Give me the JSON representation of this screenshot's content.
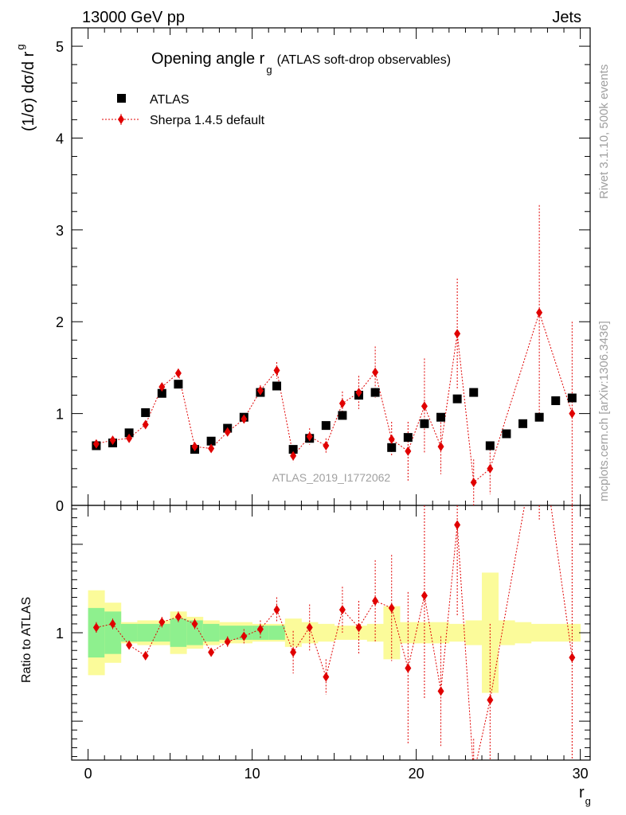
{
  "header": {
    "left": "13000 GeV pp",
    "right": "Jets"
  },
  "side_labels": {
    "rivet": "Rivet 3.1.10,  500k events",
    "mcplots": "mcplots.cern.ch [arXiv:1306.3436]"
  },
  "chart_data": {
    "type": "scatter",
    "title_main": "Opening angle r",
    "title_sub": "g",
    "title_extra": "(ATLAS soft-drop observables)",
    "analysis_label": "ATLAS_2019_I1772062",
    "xlabel": "r",
    "xlabel_sub": "g",
    "ylabel_main": "(1/σ) dσ/d r",
    "ylabel_sub": "g",
    "ratio_ylabel": "Ratio to ATLAS",
    "xlim": [
      -1,
      30.6
    ],
    "ylim_main": [
      0,
      5.2
    ],
    "ylim_ratio": [
      0.28,
      1.72
    ],
    "x_ticks": [
      "0",
      "10",
      "20",
      "30"
    ],
    "y_ticks_main": [
      "0",
      "1",
      "2",
      "3",
      "4",
      "5"
    ],
    "y_ticks_ratio": [
      "1"
    ],
    "legend": [
      "ATLAS",
      "Sherpa 1.4.5 default"
    ],
    "colors": {
      "data": "#000000",
      "mc": "#e00000",
      "band_stat": "#8ef08e",
      "band_total": "#fbfb9a"
    },
    "x": [
      0.5,
      1.5,
      2.5,
      3.5,
      4.5,
      5.5,
      6.5,
      7.5,
      8.5,
      9.5,
      10.5,
      11.5,
      12.5,
      13.5,
      14.5,
      15.5,
      16.5,
      17.5,
      18.5,
      19.5,
      20.5,
      21.5,
      22.5,
      23.5,
      24.5,
      25.5,
      26.5,
      27.5,
      28.5,
      29.5
    ],
    "series": [
      {
        "name": "ATLAS",
        "values": [
          0.65,
          0.68,
          0.79,
          1.01,
          1.22,
          1.32,
          0.61,
          0.7,
          0.84,
          0.96,
          1.23,
          1.3,
          0.61,
          0.73,
          0.87,
          0.98,
          1.2,
          1.23,
          0.63,
          0.74,
          0.89,
          0.96,
          1.16,
          1.23,
          0.65,
          0.78,
          0.89,
          0.96,
          1.14,
          1.17
        ]
      },
      {
        "name": "Sherpa 1.4.5 default",
        "values": [
          0.67,
          0.71,
          0.73,
          0.88,
          1.29,
          1.44,
          0.64,
          0.62,
          0.8,
          0.94,
          1.25,
          1.47,
          0.54,
          0.75,
          0.65,
          1.11,
          1.23,
          1.45,
          0.72,
          0.59,
          1.08,
          0.64,
          1.87,
          0.25,
          0.4,
          null,
          null,
          2.1,
          null,
          1.0
        ],
        "errors": [
          0.02,
          0.02,
          0.02,
          0.03,
          0.04,
          0.05,
          0.02,
          0.02,
          0.03,
          0.04,
          0.06,
          0.09,
          0.07,
          0.09,
          0.08,
          0.13,
          0.18,
          0.28,
          0.19,
          0.32,
          0.52,
          0.3,
          0.6,
          0.25,
          0.28,
          null,
          null,
          1.17,
          null,
          1.0
        ]
      }
    ],
    "ratio": [
      1.03,
      1.05,
      0.93,
      0.87,
      1.06,
      1.09,
      1.05,
      0.89,
      0.95,
      0.98,
      1.02,
      1.13,
      0.89,
      1.03,
      0.75,
      1.13,
      1.03,
      1.18,
      1.14,
      0.8,
      1.21,
      0.67,
      1.61,
      0.2,
      0.62,
      null,
      null,
      2.19,
      null,
      0.86
    ],
    "ratio_errors": [
      0.03,
      0.03,
      0.02,
      0.02,
      0.03,
      0.03,
      0.03,
      0.02,
      0.03,
      0.04,
      0.05,
      0.07,
      0.12,
      0.13,
      0.1,
      0.13,
      0.15,
      0.23,
      0.3,
      0.43,
      0.58,
      0.31,
      0.52,
      0.2,
      0.43,
      null,
      null,
      0.55,
      null,
      0.86
    ],
    "band_stat": [
      0.14,
      0.12,
      0.05,
      0.05,
      0.05,
      0.08,
      0.07,
      0.05,
      0.04,
      0.04,
      0.04,
      0.04,
      null,
      null,
      null,
      null,
      null,
      null,
      null,
      null,
      null,
      null,
      null,
      null,
      null,
      null,
      null,
      null,
      null,
      null
    ],
    "band_total": [
      0.24,
      0.17,
      0.06,
      0.07,
      0.07,
      0.12,
      0.09,
      0.07,
      0.06,
      0.06,
      0.05,
      0.05,
      0.08,
      0.06,
      0.05,
      0.04,
      0.04,
      0.05,
      0.15,
      0.06,
      0.06,
      0.06,
      0.05,
      0.07,
      0.34,
      0.07,
      0.06,
      0.05,
      0.05,
      0.05
    ]
  }
}
